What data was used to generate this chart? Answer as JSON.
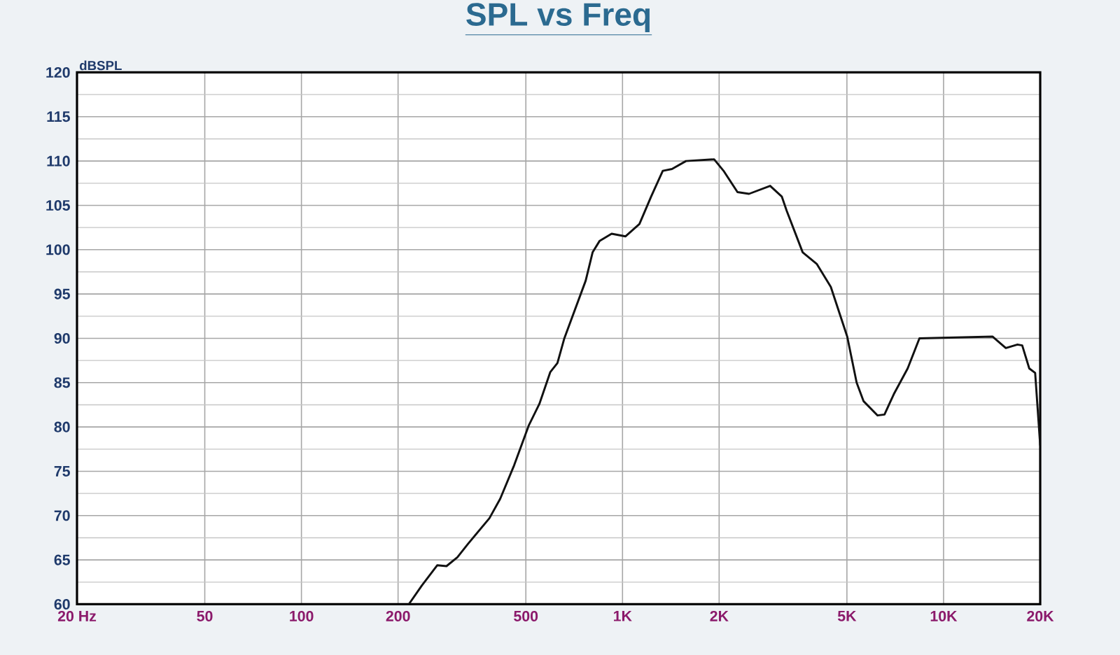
{
  "chart_data": {
    "type": "line",
    "title": "SPL vs Freq",
    "ylabel": "dBSPL",
    "log": "x",
    "xlim": [
      20,
      20000
    ],
    "ylim": [
      60,
      120
    ],
    "xticks": [
      {
        "value": 20,
        "label": "20 Hz"
      },
      50,
      100,
      200,
      500,
      {
        "value": 1000,
        "label": "1K"
      },
      {
        "value": 2000,
        "label": "2K"
      },
      {
        "value": 5000,
        "label": "5K"
      },
      {
        "value": 10000,
        "label": "10K"
      },
      {
        "value": 20000,
        "label": "20K"
      }
    ],
    "yticks": [
      60,
      65,
      70,
      75,
      80,
      85,
      90,
      95,
      100,
      105,
      110,
      115,
      120
    ],
    "grid": true,
    "marker": "none",
    "line_style": "solid",
    "series": [
      {
        "color": "#111111",
        "x": [
          216,
          237,
          265,
          283,
          306,
          330,
          385,
          416,
          460,
          511,
          551,
          596,
          627,
          659,
          768,
          807,
          849,
          925,
          1021,
          1129,
          1228,
          1335,
          1426,
          1577,
          1929,
          2064,
          2281,
          2478,
          2883,
          3134,
          3245,
          3641,
          4026,
          4455,
          5011,
          5361,
          5636,
          6230,
          6546,
          6998,
          7731,
          8411,
          14200,
          15630,
          16990,
          17580,
          18490,
          19290,
          20000
        ],
        "values": [
          60.0,
          62.1,
          64.4,
          64.3,
          65.3,
          66.8,
          69.7,
          71.9,
          75.7,
          80.2,
          82.6,
          86.2,
          87.2,
          90.0,
          96.5,
          99.7,
          101.0,
          101.8,
          101.5,
          102.9,
          106.0,
          108.9,
          109.1,
          110.0,
          110.2,
          108.9,
          106.5,
          106.3,
          107.2,
          106.0,
          104.4,
          99.7,
          98.4,
          95.8,
          90.2,
          85.0,
          82.9,
          81.3,
          81.4,
          83.7,
          86.6,
          90.0,
          90.2,
          88.9,
          89.3,
          89.2,
          86.6,
          86.1,
          77.9
        ]
      }
    ]
  }
}
